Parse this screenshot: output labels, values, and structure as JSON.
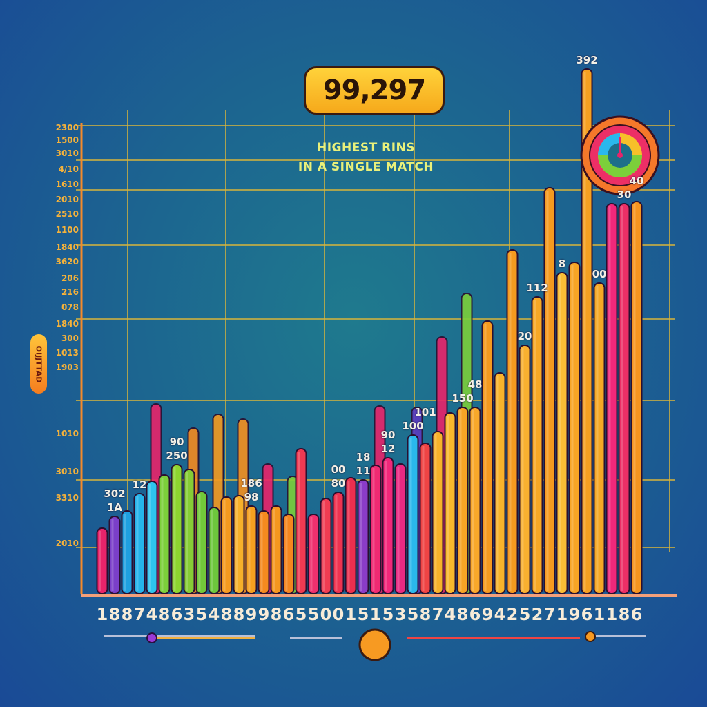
{
  "chart_data": {
    "type": "bar",
    "title_value": "99,297",
    "title_lines": [
      "HIGHEST RINS",
      "IN A SINGLE MATCH"
    ],
    "ylabel": "OIJJTTAD",
    "xlabel": "",
    "ylim": [
      0,
      760
    ],
    "grid": true,
    "y_tick_labels": [
      "2300",
      "1500",
      "3010",
      "4/10",
      "1610",
      "2010",
      "2510",
      "1100",
      "1840",
      "3620",
      "206",
      "216",
      "078",
      "1840",
      "300",
      "1013",
      "1903",
      "1010",
      "3010",
      "3310",
      "2010"
    ],
    "x_tick_labels": [
      "1",
      "8",
      "8",
      "7",
      "4",
      "8",
      "6",
      "3",
      "5",
      "4",
      "8",
      "8",
      "9",
      "9",
      "8",
      "6",
      "5",
      "5",
      "0",
      "0",
      "1",
      "5",
      "1",
      "5",
      "3",
      "5",
      "8",
      "7",
      "4",
      "8",
      "6",
      "9",
      "4",
      "2",
      "5",
      "2",
      "7",
      "1",
      "9",
      "6",
      "1",
      "1",
      "8",
      "6"
    ],
    "values": [
      95,
      112,
      120,
      145,
      163,
      172,
      187,
      180,
      148,
      125,
      140,
      142,
      127,
      120,
      127,
      115,
      210,
      115,
      138,
      147,
      168,
      165,
      186,
      197,
      188,
      230,
      218,
      235,
      262,
      270,
      270,
      395,
      320,
      498,
      360,
      430,
      588,
      465,
      480,
      760,
      450,
      565,
      565,
      568
    ],
    "bar_colors": [
      "#e8246a",
      "#7b3fc9",
      "#1fa0e0",
      "#25b4ea",
      "#2ec4ee",
      "#7ccf3a",
      "#8dd52f",
      "#86cc35",
      "#72c83a",
      "#6dc73c",
      "#f59a1f",
      "#f7b02a",
      "#f5a020",
      "#f58a1f",
      "#f5971f",
      "#f5861f",
      "#ee3a52",
      "#f0306e",
      "#f03c52",
      "#ee3350",
      "#ec2f4e",
      "#8a3cc8",
      "#f02a72",
      "#f0287a",
      "#e82a82",
      "#2ab8ec",
      "#ef4444",
      "#f7b22a",
      "#f8b82c",
      "#f7a425",
      "#f8a82a",
      "#f59a1f",
      "#f8b32b",
      "#f59a1f",
      "#f8b030",
      "#f7a825",
      "#f59a1f",
      "#f9bd35",
      "#f7a425",
      "#f5a021",
      "#f5a825",
      "#f0287a",
      "#ec2f66",
      "#f5951f"
    ],
    "background_series": {
      "name": "back",
      "indices": [
        4,
        7,
        9,
        11,
        13,
        15,
        22,
        25,
        27,
        29
      ],
      "values": [
        275,
        240,
        260,
        253,
        188,
        170,
        272,
        270,
        372,
        435
      ],
      "colors": [
        "#e8246a",
        "#f58a1f",
        "#f59a1f",
        "#f5901f",
        "#e8246a",
        "#7ccf3a",
        "#e8246a",
        "#5a3ac0",
        "#e8246a",
        "#7ccf3a"
      ]
    },
    "annotations": [
      {
        "text": "1A",
        "bar": 1
      },
      {
        "text": "12",
        "bar": 3
      },
      {
        "text": "302",
        "bar": 1
      },
      {
        "text": "250",
        "bar": 6
      },
      {
        "text": "90",
        "bar": 6
      },
      {
        "text": "98",
        "bar": 12
      },
      {
        "text": "186",
        "bar": 12
      },
      {
        "text": "80",
        "bar": 19
      },
      {
        "text": "00",
        "bar": 19
      },
      {
        "text": "11",
        "bar": 21
      },
      {
        "text": "12",
        "bar": 23
      },
      {
        "text": "18",
        "bar": 21
      },
      {
        "text": "90",
        "bar": 23
      },
      {
        "text": "100",
        "bar": 25
      },
      {
        "text": "101",
        "bar": 26
      },
      {
        "text": "150",
        "bar": 29
      },
      {
        "text": "48",
        "bar": 30
      },
      {
        "text": "20",
        "bar": 34
      },
      {
        "text": "112",
        "bar": 35
      },
      {
        "text": "8",
        "bar": 37
      },
      {
        "text": "392",
        "bar": 39
      },
      {
        "text": "00",
        "bar": 40
      },
      {
        "text": "30",
        "bar": 42
      },
      {
        "text": "40",
        "bar": 43
      }
    ],
    "colors": {
      "grid": "#d9b53a",
      "axis": "#f58a2a",
      "badge": "#ffc93a",
      "title": "#e9f07a"
    }
  }
}
